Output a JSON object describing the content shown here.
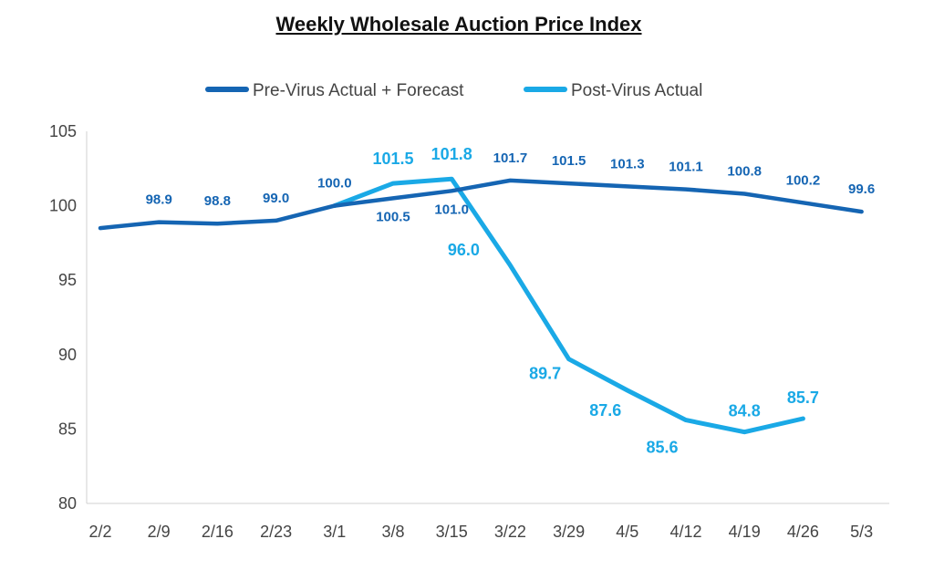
{
  "chart_data": {
    "type": "line",
    "title": "Weekly Wholesale Auction Price Index",
    "xlabel": "",
    "ylabel": "",
    "categories": [
      "2/2",
      "2/9",
      "2/16",
      "2/23",
      "3/1",
      "3/8",
      "3/15",
      "3/22",
      "3/29",
      "4/5",
      "4/12",
      "4/19",
      "4/26",
      "5/3"
    ],
    "ylim": [
      80,
      105
    ],
    "yticks": [
      80,
      85,
      90,
      95,
      100,
      105
    ],
    "legend_position": "top",
    "grid": false,
    "series": [
      {
        "name": "Pre-Virus Actual + Forecast",
        "color": "#1565b3",
        "values": [
          98.5,
          98.9,
          98.8,
          99.0,
          100.0,
          100.5,
          101.0,
          101.7,
          101.5,
          101.3,
          101.1,
          100.8,
          100.2,
          99.6
        ],
        "labels": [
          null,
          "98.9",
          "98.8",
          "99.0",
          "100.0",
          "100.5",
          "101.0",
          "101.7",
          "101.5",
          "101.3",
          "101.1",
          "100.8",
          "100.2",
          "99.6"
        ]
      },
      {
        "name": "Post-Virus Actual",
        "color": "#1aa9e6",
        "values": [
          null,
          null,
          null,
          null,
          100.0,
          101.5,
          101.8,
          96.0,
          89.7,
          87.6,
          85.6,
          84.8,
          85.7,
          null
        ],
        "labels": [
          null,
          null,
          null,
          null,
          null,
          "101.5",
          "101.8",
          "96.0",
          "89.7",
          "87.6",
          "85.6",
          "84.8",
          "85.7",
          null
        ]
      }
    ]
  }
}
